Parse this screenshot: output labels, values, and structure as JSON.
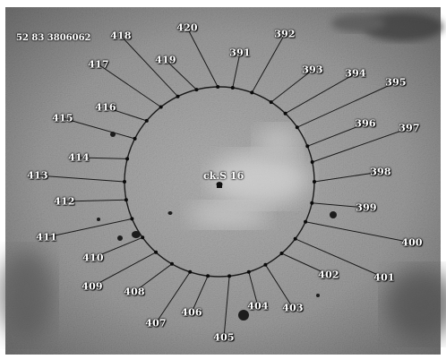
{
  "image_id": "52 83 3806062",
  "center_label": "ck.S 16",
  "colors": {
    "background": "#8f8f8f",
    "border": "#ffffff",
    "circle": "#1a1a1a",
    "marker": "#0a0a0a",
    "label_text": "#ffffff"
  },
  "locations": [
    {
      "label": "391"
    },
    {
      "label": "392"
    },
    {
      "label": "393"
    },
    {
      "label": "394"
    },
    {
      "label": "395"
    },
    {
      "label": "396"
    },
    {
      "label": "397"
    },
    {
      "label": "398"
    },
    {
      "label": "399"
    },
    {
      "label": "400"
    },
    {
      "label": "401"
    },
    {
      "label": "402"
    },
    {
      "label": "403"
    },
    {
      "label": "404"
    },
    {
      "label": "405"
    },
    {
      "label": "406"
    },
    {
      "label": "407"
    },
    {
      "label": "408"
    },
    {
      "label": "409"
    },
    {
      "label": "410"
    },
    {
      "label": "411"
    },
    {
      "label": "412"
    },
    {
      "label": "413"
    },
    {
      "label": "414"
    },
    {
      "label": "415"
    },
    {
      "label": "416"
    },
    {
      "label": "417"
    },
    {
      "label": "418"
    },
    {
      "label": "419"
    },
    {
      "label": "420"
    }
  ]
}
